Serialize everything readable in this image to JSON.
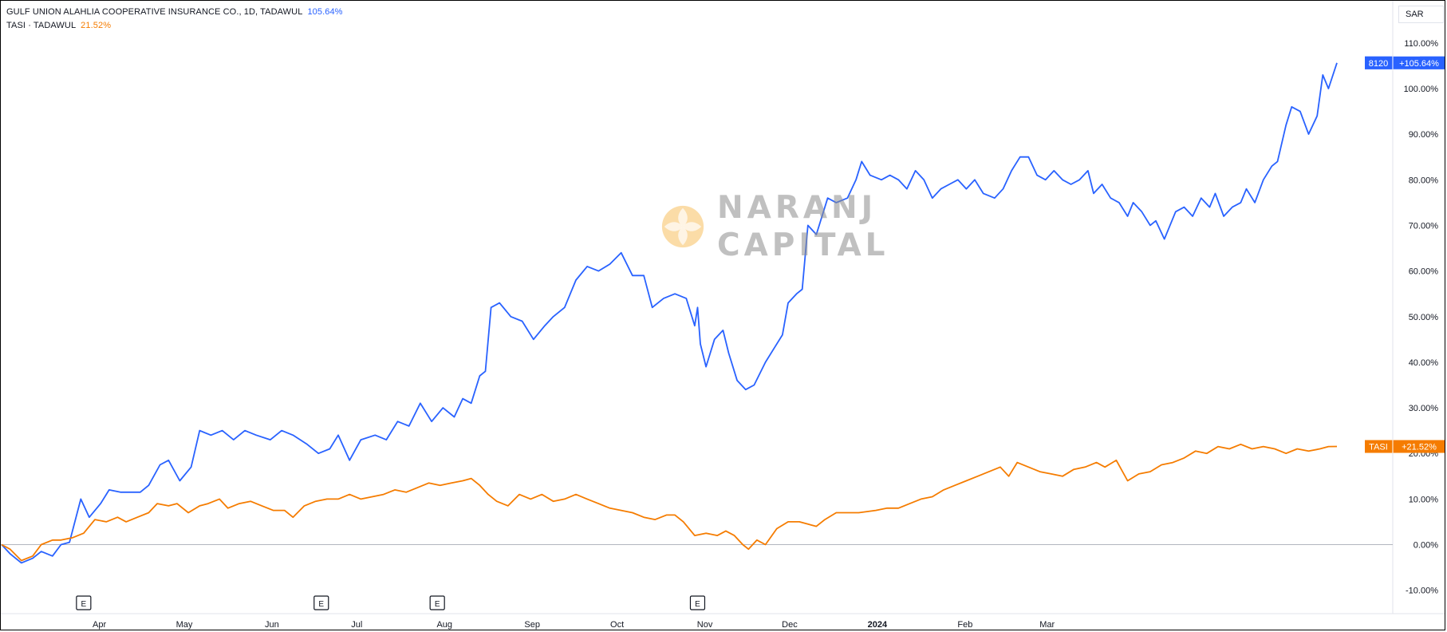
{
  "legend": [
    {
      "name": "GULF UNION ALAHLIA COOPERATIVE INSURANCE CO., 1D, TADAWUL",
      "value": "105.64%",
      "color": "#2962ff"
    },
    {
      "name": "TASI · TADAWUL",
      "value": "21.52%",
      "color": "#f57c00"
    }
  ],
  "currency_button": {
    "label": "SAR"
  },
  "watermark": {
    "line1": "NARANJ",
    "line2": "CAPITAL"
  },
  "badges": [
    {
      "symbol": "8120",
      "value": "+105.64%",
      "color": "#2962ff"
    },
    {
      "symbol": "TASI",
      "value": "+21.52%",
      "color": "#f57c00"
    }
  ],
  "earnings_marker": {
    "label": "E"
  },
  "chart_data": {
    "type": "line",
    "ylim": [
      -15,
      115
    ],
    "y_ticks": [
      "110.00%",
      "100.00%",
      "90.00%",
      "80.00%",
      "70.00%",
      "60.00%",
      "50.00%",
      "40.00%",
      "30.00%",
      "20.00%",
      "10.00%",
      "0.00%",
      "-10.00%"
    ],
    "y_tick_values": [
      110,
      100,
      90,
      80,
      70,
      60,
      50,
      40,
      30,
      20,
      10,
      0,
      -10
    ],
    "x_labels": [
      "Apr",
      "May",
      "Jun",
      "Jul",
      "Aug",
      "Sep",
      "Oct",
      "Nov",
      "Dec",
      "2024",
      "Feb",
      "Mar"
    ],
    "x_label_dates": [
      "2023-04-01",
      "2023-05-01",
      "2023-06-01",
      "2023-07-01",
      "2023-08-01",
      "2023-09-01",
      "2023-10-01",
      "2023-11-01",
      "2023-12-01",
      "2024-01-01",
      "2024-02-01",
      "2024-03-01"
    ],
    "earnings_dates": [
      "2023-03-27",
      "2023-06-19",
      "2023-07-30",
      "2023-10-30"
    ],
    "zero_line": true,
    "series": [
      {
        "name": "GULF UNION ALAHLIA COOPERATIVE INSURANCE CO.",
        "color": "#2962ff",
        "points": [
          [
            "2023-02-26",
            0
          ],
          [
            "2023-03-01",
            -2
          ],
          [
            "2023-03-05",
            -4
          ],
          [
            "2023-03-09",
            -3
          ],
          [
            "2023-03-12",
            -1.5
          ],
          [
            "2023-03-16",
            -2.5
          ],
          [
            "2023-03-19",
            0
          ],
          [
            "2023-03-22",
            0.5
          ],
          [
            "2023-03-26",
            10
          ],
          [
            "2023-03-29",
            6
          ],
          [
            "2023-04-02",
            9
          ],
          [
            "2023-04-05",
            12
          ],
          [
            "2023-04-09",
            11.5
          ],
          [
            "2023-04-12",
            11.5
          ],
          [
            "2023-04-16",
            11.5
          ],
          [
            "2023-04-19",
            13
          ],
          [
            "2023-04-23",
            17.5
          ],
          [
            "2023-04-26",
            18.5
          ],
          [
            "2023-04-30",
            14
          ],
          [
            "2023-05-04",
            17
          ],
          [
            "2023-05-07",
            25
          ],
          [
            "2023-05-11",
            24
          ],
          [
            "2023-05-15",
            25
          ],
          [
            "2023-05-19",
            23
          ],
          [
            "2023-05-23",
            25
          ],
          [
            "2023-05-27",
            24
          ],
          [
            "2023-06-01",
            23
          ],
          [
            "2023-06-05",
            25
          ],
          [
            "2023-06-09",
            24
          ],
          [
            "2023-06-14",
            22
          ],
          [
            "2023-06-18",
            20
          ],
          [
            "2023-06-22",
            21
          ],
          [
            "2023-06-25",
            24
          ],
          [
            "2023-06-29",
            18.5
          ],
          [
            "2023-07-03",
            23
          ],
          [
            "2023-07-08",
            24
          ],
          [
            "2023-07-12",
            23
          ],
          [
            "2023-07-16",
            27
          ],
          [
            "2023-07-20",
            26
          ],
          [
            "2023-07-24",
            31
          ],
          [
            "2023-07-28",
            27
          ],
          [
            "2023-08-01",
            30
          ],
          [
            "2023-08-05",
            28
          ],
          [
            "2023-08-08",
            32
          ],
          [
            "2023-08-11",
            31
          ],
          [
            "2023-08-14",
            37
          ],
          [
            "2023-08-16",
            38
          ],
          [
            "2023-08-18",
            52
          ],
          [
            "2023-08-21",
            53
          ],
          [
            "2023-08-25",
            50
          ],
          [
            "2023-08-29",
            49
          ],
          [
            "2023-09-02",
            45
          ],
          [
            "2023-09-06",
            48
          ],
          [
            "2023-09-09",
            50
          ],
          [
            "2023-09-13",
            52
          ],
          [
            "2023-09-17",
            58
          ],
          [
            "2023-09-21",
            61
          ],
          [
            "2023-09-25",
            60
          ],
          [
            "2023-09-29",
            61.5
          ],
          [
            "2023-10-03",
            64
          ],
          [
            "2023-10-07",
            59
          ],
          [
            "2023-10-11",
            59
          ],
          [
            "2023-10-14",
            52
          ],
          [
            "2023-10-18",
            54
          ],
          [
            "2023-10-22",
            55
          ],
          [
            "2023-10-26",
            54
          ],
          [
            "2023-10-29",
            48
          ],
          [
            "2023-10-30",
            52
          ],
          [
            "2023-10-31",
            44
          ],
          [
            "2023-11-02",
            39
          ],
          [
            "2023-11-05",
            45
          ],
          [
            "2023-11-08",
            47
          ],
          [
            "2023-11-10",
            42
          ],
          [
            "2023-11-13",
            36
          ],
          [
            "2023-11-16",
            34
          ],
          [
            "2023-11-19",
            35
          ],
          [
            "2023-11-23",
            40
          ],
          [
            "2023-11-26",
            43
          ],
          [
            "2023-11-29",
            46
          ],
          [
            "2023-12-01",
            53
          ],
          [
            "2023-12-04",
            55
          ],
          [
            "2023-12-06",
            56
          ],
          [
            "2023-12-08",
            70
          ],
          [
            "2023-12-11",
            68
          ],
          [
            "2023-12-15",
            76
          ],
          [
            "2023-12-18",
            75
          ],
          [
            "2023-12-22",
            76
          ],
          [
            "2023-12-25",
            80
          ],
          [
            "2023-12-27",
            84
          ],
          [
            "2023-12-30",
            81
          ],
          [
            "2024-01-03",
            80
          ],
          [
            "2024-01-06",
            81
          ],
          [
            "2024-01-09",
            80
          ],
          [
            "2024-01-12",
            78
          ],
          [
            "2024-01-15",
            82
          ],
          [
            "2024-01-18",
            80
          ],
          [
            "2024-01-21",
            76
          ],
          [
            "2024-01-24",
            78
          ],
          [
            "2024-01-27",
            79
          ],
          [
            "2024-01-30",
            80
          ],
          [
            "2024-02-02",
            78
          ],
          [
            "2024-02-05",
            80
          ],
          [
            "2024-02-08",
            77
          ],
          [
            "2024-02-12",
            76
          ],
          [
            "2024-02-15",
            78
          ],
          [
            "2024-02-18",
            82
          ],
          [
            "2024-02-21",
            85
          ],
          [
            "2024-02-24",
            85
          ],
          [
            "2024-02-27",
            81
          ],
          [
            "2024-03-01",
            80
          ],
          [
            "2024-03-04",
            82
          ],
          [
            "2024-03-07",
            80
          ],
          [
            "2024-03-10",
            79
          ],
          [
            "2024-03-13",
            80
          ],
          [
            "2024-03-16",
            82
          ],
          [
            "2024-03-18",
            77
          ],
          [
            "2024-03-21",
            79
          ],
          [
            "2024-03-24",
            76
          ],
          [
            "2024-03-27",
            75
          ],
          [
            "2024-03-30",
            72
          ],
          [
            "2024-04-01",
            75
          ],
          [
            "2024-04-04",
            73
          ],
          [
            "2024-04-07",
            70
          ],
          [
            "2024-04-09",
            71
          ],
          [
            "2024-04-12",
            67
          ],
          [
            "2024-04-16",
            73
          ],
          [
            "2024-04-19",
            74
          ],
          [
            "2024-04-22",
            72
          ],
          [
            "2024-04-25",
            76
          ],
          [
            "2024-04-28",
            74
          ],
          [
            "2024-04-30",
            77
          ],
          [
            "2024-05-03",
            72
          ],
          [
            "2024-05-06",
            74
          ],
          [
            "2024-05-09",
            75
          ],
          [
            "2024-05-11",
            78
          ],
          [
            "2024-05-14",
            75
          ],
          [
            "2024-05-17",
            80
          ],
          [
            "2024-05-20",
            83
          ],
          [
            "2024-05-22",
            84
          ],
          [
            "2024-05-25",
            92
          ],
          [
            "2024-05-27",
            96
          ],
          [
            "2024-05-30",
            95
          ],
          [
            "2024-06-02",
            90
          ],
          [
            "2024-06-05",
            94
          ],
          [
            "2024-06-07",
            103
          ],
          [
            "2024-06-09",
            100
          ],
          [
            "2024-06-12",
            105.64
          ]
        ]
      },
      {
        "name": "TASI",
        "color": "#f57c00",
        "points": [
          [
            "2023-02-26",
            0
          ],
          [
            "2023-03-01",
            -1
          ],
          [
            "2023-03-05",
            -3.5
          ],
          [
            "2023-03-09",
            -2.5
          ],
          [
            "2023-03-12",
            0
          ],
          [
            "2023-03-16",
            1
          ],
          [
            "2023-03-19",
            1
          ],
          [
            "2023-03-23",
            1.5
          ],
          [
            "2023-03-27",
            2.5
          ],
          [
            "2023-03-31",
            5.5
          ],
          [
            "2023-04-04",
            5
          ],
          [
            "2023-04-08",
            6
          ],
          [
            "2023-04-11",
            5
          ],
          [
            "2023-04-15",
            6
          ],
          [
            "2023-04-19",
            7
          ],
          [
            "2023-04-22",
            9
          ],
          [
            "2023-04-26",
            8.5
          ],
          [
            "2023-04-29",
            9
          ],
          [
            "2023-05-03",
            7
          ],
          [
            "2023-05-07",
            8.5
          ],
          [
            "2023-05-10",
            9
          ],
          [
            "2023-05-14",
            10
          ],
          [
            "2023-05-17",
            8
          ],
          [
            "2023-05-21",
            9
          ],
          [
            "2023-05-25",
            9.5
          ],
          [
            "2023-05-29",
            8.5
          ],
          [
            "2023-06-02",
            7.5
          ],
          [
            "2023-06-06",
            7.5
          ],
          [
            "2023-06-09",
            6
          ],
          [
            "2023-06-13",
            8.5
          ],
          [
            "2023-06-17",
            9.5
          ],
          [
            "2023-06-21",
            10
          ],
          [
            "2023-06-25",
            10
          ],
          [
            "2023-06-29",
            11
          ],
          [
            "2023-07-03",
            10
          ],
          [
            "2023-07-07",
            10.5
          ],
          [
            "2023-07-11",
            11
          ],
          [
            "2023-07-15",
            12
          ],
          [
            "2023-07-19",
            11.5
          ],
          [
            "2023-07-23",
            12.5
          ],
          [
            "2023-07-27",
            13.5
          ],
          [
            "2023-07-31",
            13
          ],
          [
            "2023-08-04",
            13.5
          ],
          [
            "2023-08-08",
            14
          ],
          [
            "2023-08-11",
            14.5
          ],
          [
            "2023-08-14",
            13
          ],
          [
            "2023-08-17",
            11
          ],
          [
            "2023-08-20",
            9.5
          ],
          [
            "2023-08-24",
            8.5
          ],
          [
            "2023-08-28",
            11
          ],
          [
            "2023-09-01",
            10
          ],
          [
            "2023-09-05",
            11
          ],
          [
            "2023-09-09",
            9.5
          ],
          [
            "2023-09-13",
            10
          ],
          [
            "2023-09-17",
            11
          ],
          [
            "2023-09-21",
            10
          ],
          [
            "2023-09-25",
            9
          ],
          [
            "2023-09-29",
            8
          ],
          [
            "2023-10-03",
            7.5
          ],
          [
            "2023-10-07",
            7
          ],
          [
            "2023-10-11",
            6
          ],
          [
            "2023-10-15",
            5.5
          ],
          [
            "2023-10-19",
            6.5
          ],
          [
            "2023-10-22",
            6.5
          ],
          [
            "2023-10-25",
            5
          ],
          [
            "2023-10-29",
            2
          ],
          [
            "2023-11-02",
            2.5
          ],
          [
            "2023-11-06",
            2
          ],
          [
            "2023-11-09",
            3
          ],
          [
            "2023-11-12",
            2
          ],
          [
            "2023-11-15",
            0
          ],
          [
            "2023-11-17",
            -1
          ],
          [
            "2023-11-20",
            1
          ],
          [
            "2023-11-23",
            0
          ],
          [
            "2023-11-27",
            3.5
          ],
          [
            "2023-12-01",
            5
          ],
          [
            "2023-12-05",
            5
          ],
          [
            "2023-12-08",
            4.5
          ],
          [
            "2023-12-11",
            4
          ],
          [
            "2023-12-14",
            5.5
          ],
          [
            "2023-12-18",
            7
          ],
          [
            "2023-12-22",
            7
          ],
          [
            "2023-12-26",
            7
          ],
          [
            "2024-01-01",
            7.5
          ],
          [
            "2024-01-05",
            8
          ],
          [
            "2024-01-09",
            8
          ],
          [
            "2024-01-13",
            9
          ],
          [
            "2024-01-17",
            10
          ],
          [
            "2024-01-21",
            10.5
          ],
          [
            "2024-01-25",
            12
          ],
          [
            "2024-01-29",
            13
          ],
          [
            "2024-02-02",
            14
          ],
          [
            "2024-02-06",
            15
          ],
          [
            "2024-02-10",
            16
          ],
          [
            "2024-02-14",
            17
          ],
          [
            "2024-02-17",
            15
          ],
          [
            "2024-02-20",
            18
          ],
          [
            "2024-02-24",
            17
          ],
          [
            "2024-02-28",
            16
          ],
          [
            "2024-03-03",
            15.5
          ],
          [
            "2024-03-07",
            15
          ],
          [
            "2024-03-11",
            16.5
          ],
          [
            "2024-03-15",
            17
          ],
          [
            "2024-03-19",
            18
          ],
          [
            "2024-03-22",
            17
          ],
          [
            "2024-03-26",
            18.5
          ],
          [
            "2024-03-30",
            14
          ],
          [
            "2024-04-03",
            15.5
          ],
          [
            "2024-04-07",
            16
          ],
          [
            "2024-04-11",
            17.5
          ],
          [
            "2024-04-15",
            18
          ],
          [
            "2024-04-19",
            19
          ],
          [
            "2024-04-23",
            20.5
          ],
          [
            "2024-04-27",
            20
          ],
          [
            "2024-05-01",
            21.5
          ],
          [
            "2024-05-05",
            21
          ],
          [
            "2024-05-09",
            22
          ],
          [
            "2024-05-13",
            21
          ],
          [
            "2024-05-17",
            21.5
          ],
          [
            "2024-05-21",
            21
          ],
          [
            "2024-05-25",
            20
          ],
          [
            "2024-05-29",
            21
          ],
          [
            "2024-06-02",
            20.5
          ],
          [
            "2024-06-06",
            21
          ],
          [
            "2024-06-09",
            21.5
          ],
          [
            "2024-06-12",
            21.52
          ]
        ]
      }
    ]
  }
}
